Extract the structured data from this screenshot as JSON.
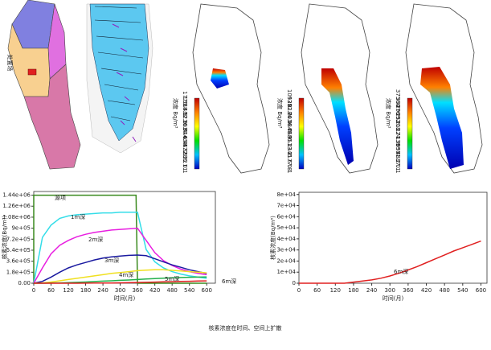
{
  "maps": [
    {
      "label": "处置场"
    },
    {
      "legend": {
        "title": "浓度 Bq/m³",
        "labels": [
          "1775",
          "1588.9",
          "1402.8",
          "1216.7",
          "1030.6",
          "844.44",
          "658.33",
          "472.22",
          "286.11",
          "0.1"
        ]
      }
    },
    {
      "legend": {
        "title": "浓度 Bq/m³",
        "labels": [
          "10520",
          "9352.2",
          "8184.4",
          "7016.7",
          "5848.9",
          "4681.1",
          "3513.3",
          "2345.6",
          "1177.8",
          "0.1"
        ]
      }
    },
    {
      "legend": {
        "title": "浓度 Bq/m³",
        "labels": [
          "37560",
          "33476",
          "29392",
          "25308",
          "21224",
          "17139",
          "13055",
          "8971.2",
          "4887.1",
          "0.1"
        ]
      }
    }
  ],
  "chart_data": [
    {
      "type": "line",
      "xlabel": "时间(月)",
      "ylabel": "核素浓度(Bq/m³)",
      "x": [
        0,
        30,
        60,
        90,
        120,
        150,
        180,
        210,
        240,
        270,
        300,
        330,
        360,
        390,
        420,
        450,
        480,
        510,
        540,
        570,
        600
      ],
      "xlim": [
        0,
        630
      ],
      "xticks": [
        0,
        60,
        120,
        180,
        240,
        300,
        360,
        420,
        480,
        540,
        600
      ],
      "ylim": [
        0,
        1500000
      ],
      "yticks": [
        {
          "value": 0,
          "label": "0.00"
        },
        {
          "value": 180000,
          "label": "1.8e+05"
        },
        {
          "value": 360000,
          "label": "3.6e+05"
        },
        {
          "value": 540000,
          "label": "5.4e+05"
        },
        {
          "value": 720000,
          "label": "7.2e+05"
        },
        {
          "value": 900000,
          "label": "9e+05"
        },
        {
          "value": 1080000,
          "label": "1.08e+06"
        },
        {
          "value": 1260000,
          "label": "1.26e+06"
        },
        {
          "value": 1440000,
          "label": "1.44e+06"
        }
      ],
      "series": [
        {
          "name": "源项",
          "color": "#3a8a1e",
          "x": [
            0,
            0,
            355,
            360,
            600
          ],
          "values": [
            0,
            1440000,
            1440000,
            0,
            0
          ]
        },
        {
          "name": "1m深",
          "color": "#33dde8",
          "values": [
            0,
            750000,
            950000,
            1060000,
            1100000,
            1120000,
            1130000,
            1140000,
            1150000,
            1150000,
            1160000,
            1160000,
            1160000,
            550000,
            350000,
            250000,
            190000,
            150000,
            120000,
            100000,
            80000
          ]
        },
        {
          "name": "2m深",
          "color": "#e81ee0",
          "values": [
            0,
            250000,
            480000,
            620000,
            700000,
            760000,
            800000,
            830000,
            850000,
            870000,
            880000,
            890000,
            900000,
            700000,
            500000,
            370000,
            290000,
            230000,
            190000,
            160000,
            140000
          ]
        },
        {
          "name": "3m深",
          "color": "#1a1aa0",
          "values": [
            0,
            30000,
            100000,
            180000,
            250000,
            300000,
            340000,
            380000,
            410000,
            430000,
            445000,
            455000,
            460000,
            450000,
            400000,
            350000,
            300000,
            260000,
            220000,
            190000,
            160000
          ]
        },
        {
          "name": "4m深",
          "color": "#f0e020",
          "values": [
            0,
            5000,
            20000,
            40000,
            60000,
            80000,
            100000,
            120000,
            140000,
            160000,
            175000,
            190000,
            205000,
            215000,
            220000,
            220000,
            210000,
            200000,
            190000,
            180000,
            170000
          ]
        },
        {
          "name": "5m深",
          "color": "#22b04a",
          "values": [
            0,
            0,
            2000,
            5000,
            10000,
            15000,
            20000,
            27000,
            34000,
            40000,
            47000,
            53000,
            60000,
            68000,
            75000,
            82000,
            88000,
            93000,
            97000,
            100000,
            102000
          ]
        },
        {
          "name": "6m深",
          "color": "#e02020",
          "values": [
            0,
            0,
            0,
            0,
            0,
            0,
            1000,
            2000,
            3000,
            4500,
            6500,
            9000,
            12000,
            15000,
            18500,
            22000,
            25500,
            29000,
            32000,
            35000,
            38000
          ]
        }
      ]
    },
    {
      "type": "line",
      "xlabel": "时间(月)",
      "ylabel": "核素浓度(Bq/m³)",
      "x": [
        0,
        30,
        60,
        90,
        120,
        150,
        180,
        210,
        240,
        270,
        300,
        330,
        360,
        390,
        420,
        450,
        480,
        510,
        540,
        570,
        600
      ],
      "xlim": [
        0,
        620
      ],
      "xticks": [
        0,
        60,
        120,
        180,
        240,
        300,
        360,
        420,
        480,
        540,
        600
      ],
      "ylim": [
        0,
        82000
      ],
      "yticks": [
        0,
        {
          "value": 10000,
          "label": "1e+04"
        },
        {
          "value": 20000,
          "label": "2e+04"
        },
        {
          "value": 30000,
          "label": "3e+04"
        },
        {
          "value": 40000,
          "label": "4e+04"
        },
        {
          "value": 50000,
          "label": "5e+04"
        },
        {
          "value": 60000,
          "label": "6e+04"
        },
        {
          "value": 70000,
          "label": "7e+04"
        },
        {
          "value": 80000,
          "label": "8e+04"
        }
      ],
      "series": [
        {
          "name": "6m深",
          "color": "#e02020",
          "values": [
            0,
            0,
            0,
            0,
            0,
            0,
            1000,
            2000,
            3000,
            4500,
            6500,
            9000,
            12000,
            15000,
            18500,
            22000,
            25500,
            29000,
            32000,
            35000,
            38000
          ]
        }
      ]
    }
  ],
  "caption": "核素浓度在时间、空间上扩散"
}
